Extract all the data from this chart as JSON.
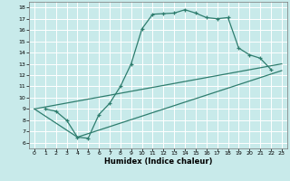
{
  "title": "",
  "xlabel": "Humidex (Indice chaleur)",
  "bg_color": "#c8eaea",
  "line_color": "#2e7d6e",
  "grid_color": "#ffffff",
  "xlim": [
    -0.5,
    23.5
  ],
  "ylim": [
    5.5,
    18.5
  ],
  "xticks": [
    0,
    1,
    2,
    3,
    4,
    5,
    6,
    7,
    8,
    9,
    10,
    11,
    12,
    13,
    14,
    15,
    16,
    17,
    18,
    19,
    20,
    21,
    22,
    23
  ],
  "yticks": [
    6,
    7,
    8,
    9,
    10,
    11,
    12,
    13,
    14,
    15,
    16,
    17,
    18
  ],
  "line1_x": [
    1,
    2,
    3,
    4,
    5,
    6,
    7,
    8,
    9,
    10,
    11,
    12,
    13,
    14,
    15,
    16,
    17,
    18,
    19,
    20,
    21,
    22
  ],
  "line1_y": [
    9.0,
    8.8,
    8.0,
    6.5,
    6.4,
    8.5,
    9.5,
    11.0,
    13.0,
    16.1,
    17.4,
    17.45,
    17.5,
    17.8,
    17.5,
    17.1,
    17.0,
    17.1,
    14.4,
    13.8,
    13.5,
    12.5
  ],
  "line2_x": [
    0,
    4,
    23
  ],
  "line2_y": [
    9.0,
    6.5,
    12.4
  ],
  "line3_x": [
    0,
    23
  ],
  "line3_y": [
    9.0,
    13.0
  ],
  "marker": "+"
}
